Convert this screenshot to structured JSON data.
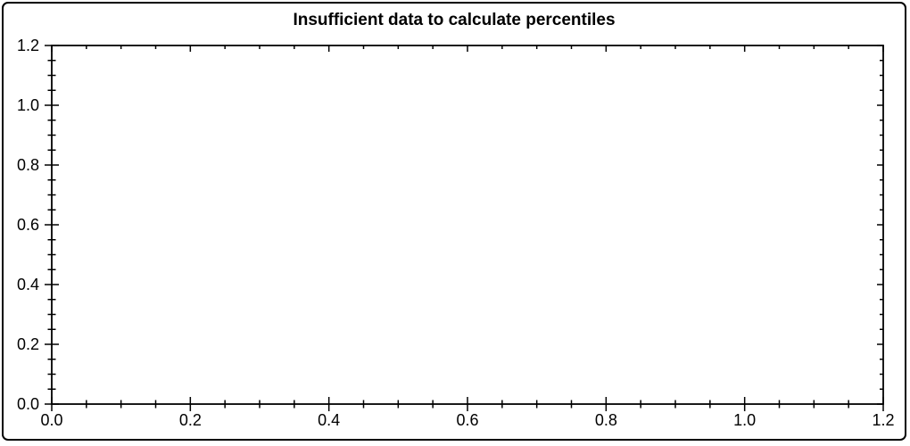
{
  "frame": {
    "border_color": "#000000",
    "background_color": "#ffffff"
  },
  "chart_data": {
    "type": "line",
    "title": "Insufficient data to calculate percentiles",
    "series": [],
    "grid": false,
    "legend": null,
    "axis_color": "#000000",
    "text_color": "#000000",
    "x_axis": {
      "label": "",
      "min": 0.0,
      "max": 1.2,
      "major_tick_interval": 0.2,
      "minor_tick_interval": 0.05,
      "tick_values": [
        0.0,
        0.2,
        0.4,
        0.6,
        0.8,
        1.0,
        1.2
      ],
      "tick_labels": [
        "0.0",
        "0.2",
        "0.4",
        "0.6",
        "0.8",
        "1.0",
        "1.2"
      ]
    },
    "y_axis": {
      "label": "",
      "min": 0.0,
      "max": 1.2,
      "major_tick_interval": 0.2,
      "minor_tick_interval": 0.05,
      "tick_values": [
        0.0,
        0.2,
        0.4,
        0.6,
        0.8,
        1.0,
        1.2
      ],
      "tick_labels": [
        "0.0",
        "0.2",
        "0.4",
        "0.6",
        "0.8",
        "1.0",
        "1.2"
      ]
    }
  }
}
